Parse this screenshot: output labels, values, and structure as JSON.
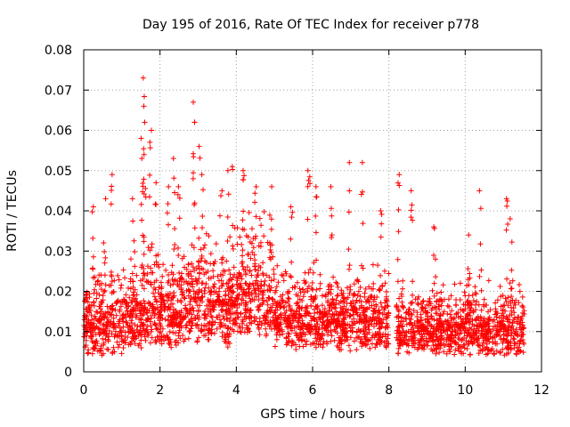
{
  "chart_data": {
    "type": "scatter",
    "title": "Day 195 of 2016, Rate Of TEC Index for receiver p778",
    "xlabel": "GPS time / hours",
    "ylabel": "ROTI / TECUs",
    "xlim": [
      0,
      12
    ],
    "ylim": [
      0,
      0.08
    ],
    "grid": true,
    "marker": "+",
    "series_color": "#ff0000",
    "x_ticks": [
      {
        "value": 0,
        "label": "0"
      },
      {
        "value": 2,
        "label": "2"
      },
      {
        "value": 4,
        "label": "4"
      },
      {
        "value": 6,
        "label": "6"
      },
      {
        "value": 8,
        "label": "8"
      },
      {
        "value": 10,
        "label": "10"
      },
      {
        "value": 12,
        "label": "12"
      }
    ],
    "y_ticks": [
      {
        "value": 0,
        "label": "0"
      },
      {
        "value": 0.01,
        "label": "0.01"
      },
      {
        "value": 0.02,
        "label": "0.02"
      },
      {
        "value": 0.03,
        "label": "0.03"
      },
      {
        "value": 0.04,
        "label": "0.04"
      },
      {
        "value": 0.05,
        "label": "0.05"
      },
      {
        "value": 0.06,
        "label": "0.06"
      },
      {
        "value": 0.07,
        "label": "0.07"
      },
      {
        "value": 0.08,
        "label": "0.08"
      }
    ],
    "series": [
      {
        "name": "ROTI",
        "x_range": [
          0,
          11.55
        ],
        "density_bands": [
          {
            "x": [
              0.0,
              1.0
            ],
            "y": [
              0.004,
              0.03
            ]
          },
          {
            "x": [
              1.0,
              2.5
            ],
            "y": [
              0.005,
              0.035
            ]
          },
          {
            "x": [
              2.5,
              4.0
            ],
            "y": [
              0.006,
              0.04
            ]
          },
          {
            "x": [
              4.0,
              5.0
            ],
            "y": [
              0.008,
              0.045
            ]
          },
          {
            "x": [
              5.0,
              8.0
            ],
            "y": [
              0.005,
              0.03
            ]
          },
          {
            "x": [
              8.2,
              11.55
            ],
            "y": [
              0.004,
              0.025
            ]
          }
        ],
        "peaks": [
          {
            "x": 0.25,
            "y": 0.041
          },
          {
            "x": 0.55,
            "y": 0.043
          },
          {
            "x": 0.72,
            "y": 0.049
          },
          {
            "x": 1.3,
            "y": 0.043
          },
          {
            "x": 1.52,
            "y": 0.058
          },
          {
            "x": 1.55,
            "y": 0.066
          },
          {
            "x": 1.57,
            "y": 0.073
          },
          {
            "x": 1.6,
            "y": 0.062
          },
          {
            "x": 1.75,
            "y": 0.06
          },
          {
            "x": 1.9,
            "y": 0.047
          },
          {
            "x": 2.2,
            "y": 0.046
          },
          {
            "x": 2.38,
            "y": 0.053
          },
          {
            "x": 2.5,
            "y": 0.046
          },
          {
            "x": 2.88,
            "y": 0.062
          },
          {
            "x": 2.9,
            "y": 0.067
          },
          {
            "x": 3.05,
            "y": 0.056
          },
          {
            "x": 3.1,
            "y": 0.049
          },
          {
            "x": 3.6,
            "y": 0.045
          },
          {
            "x": 3.8,
            "y": 0.05
          },
          {
            "x": 3.9,
            "y": 0.051
          },
          {
            "x": 4.2,
            "y": 0.05
          },
          {
            "x": 4.5,
            "y": 0.046
          },
          {
            "x": 4.9,
            "y": 0.046
          },
          {
            "x": 5.45,
            "y": 0.041
          },
          {
            "x": 5.9,
            "y": 0.05
          },
          {
            "x": 6.1,
            "y": 0.046
          },
          {
            "x": 6.5,
            "y": 0.046
          },
          {
            "x": 6.95,
            "y": 0.052
          },
          {
            "x": 7.3,
            "y": 0.052
          },
          {
            "x": 7.8,
            "y": 0.04
          },
          {
            "x": 8.25,
            "y": 0.049
          },
          {
            "x": 8.6,
            "y": 0.045
          },
          {
            "x": 9.2,
            "y": 0.036
          },
          {
            "x": 10.1,
            "y": 0.034
          },
          {
            "x": 10.4,
            "y": 0.045
          },
          {
            "x": 11.1,
            "y": 0.043
          },
          {
            "x": 11.2,
            "y": 0.038
          }
        ]
      }
    ]
  }
}
